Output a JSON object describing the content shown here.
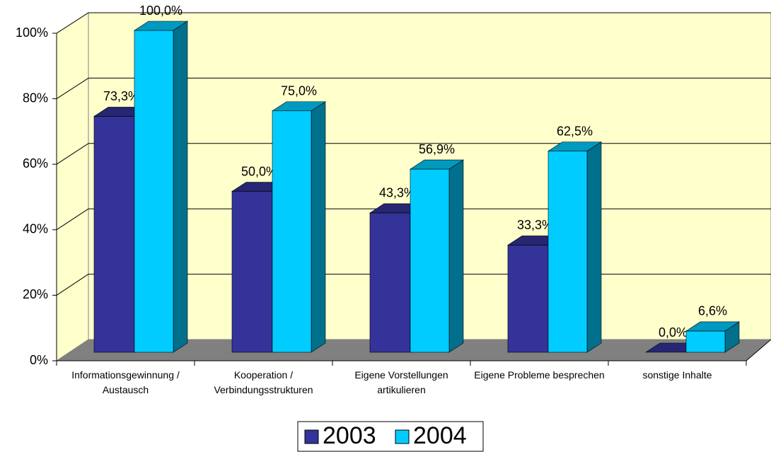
{
  "chart_data": {
    "type": "bar3d",
    "categories": [
      "Informationsgewinnung / Austausch",
      "Kooperation / Verbindungsstrukturen",
      "Eigene Vorstellungen artikulieren",
      "Eigene Probleme besprechen",
      "sonstige Inhalte"
    ],
    "series": [
      {
        "name": "2003",
        "color": "#333399",
        "values": [
          73.3,
          50.0,
          43.3,
          33.3,
          0.0
        ],
        "value_labels": [
          "73,3%",
          "50,0%",
          "43,3%",
          "33,3%",
          "0,0%"
        ]
      },
      {
        "name": "2004",
        "color": "#00ccff",
        "values": [
          100.0,
          75.0,
          56.9,
          62.5,
          6.6
        ],
        "value_labels": [
          "100,0%",
          "75,0%",
          "56,9%",
          "62,5%",
          "6,6%"
        ]
      }
    ],
    "ylim": [
      0,
      100
    ],
    "yticks": [
      {
        "value": 0,
        "label": "0%"
      },
      {
        "value": 20,
        "label": "20%"
      },
      {
        "value": 40,
        "label": "40%"
      },
      {
        "value": 60,
        "label": "60%"
      },
      {
        "value": 80,
        "label": "80%"
      },
      {
        "value": 100,
        "label": "100%"
      }
    ],
    "grid": true,
    "legend": "bottom"
  }
}
